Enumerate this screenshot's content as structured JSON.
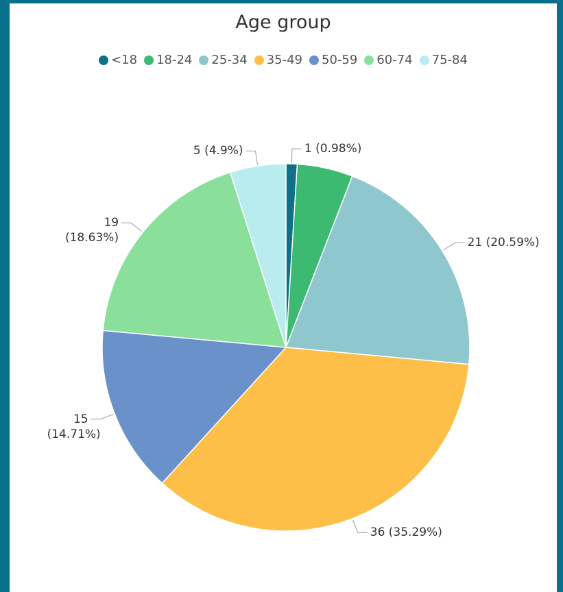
{
  "chart_data": {
    "type": "pie",
    "title": "Age group",
    "categories": [
      "<18",
      "18-24",
      "25-34",
      "35-49",
      "50-59",
      "60-74",
      "75-84"
    ],
    "values": [
      1,
      5,
      21,
      36,
      15,
      19,
      5
    ],
    "value_labels": [
      "1 (0.98%)",
      null,
      "21 (20.59%)",
      "36 (35.29%)",
      "15 (14.71%)",
      "19 (18.63%)",
      "5 (4.9%)"
    ],
    "colors": [
      "#0f7088",
      "#3dba72",
      "#8fc7cf",
      "#fdbf47",
      "#6a91c9",
      "#8ae09a",
      "#b8ecef"
    ],
    "legend": "top"
  }
}
